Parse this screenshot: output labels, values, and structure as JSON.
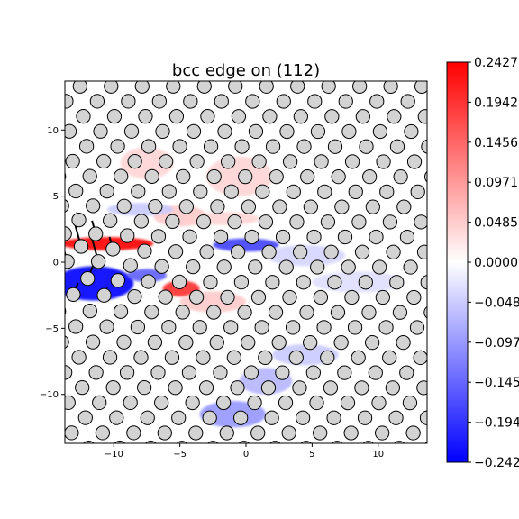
{
  "chart_data": {
    "type": "heatmap",
    "title": "bcc edge on (112)",
    "xlabel": "",
    "ylabel": "",
    "xlim": [
      -13.7,
      13.7
    ],
    "ylim": [
      -13.7,
      13.7
    ],
    "x_ticks": [
      -10,
      -5,
      0,
      5,
      10
    ],
    "x_tick_labels": [
      "−10",
      "−5",
      "0",
      "5",
      "10"
    ],
    "y_ticks": [
      10,
      5,
      0,
      -5,
      -10
    ],
    "y_tick_labels": [
      "10",
      "5",
      "0",
      "−5",
      "−10"
    ],
    "colormap": "bwr",
    "colorbar": {
      "vmin": -0.2427,
      "vmax": 0.2427,
      "ticks": [
        0.2427,
        0.1942,
        0.1456,
        0.0971,
        0.0485,
        0.0,
        -0.0485,
        -0.0971,
        -0.1456,
        -0.1942,
        -0.2427
      ],
      "tick_labels": [
        "0.2427",
        "0.1942",
        "0.1456",
        "0.0971",
        "0.0485",
        "0.0000",
        "−0.0485",
        "−0.0971",
        "−0.1456",
        "−0.1942",
        "−0.2427"
      ]
    },
    "field_regions": [
      {
        "x": -10.5,
        "y": 1.4,
        "sx": 3.5,
        "sy": 0.5,
        "value": 0.24
      },
      {
        "x": -11.5,
        "y": -1.6,
        "sx": 3.0,
        "sy": 1.3,
        "value": -0.24
      },
      {
        "x": -4.9,
        "y": -2.0,
        "sx": 1.4,
        "sy": 0.6,
        "value": 0.2
      },
      {
        "x": -7.5,
        "y": -1.0,
        "sx": 1.5,
        "sy": 0.5,
        "value": -0.15
      },
      {
        "x": 0.0,
        "y": 1.3,
        "sx": 2.5,
        "sy": 0.5,
        "value": -0.18
      },
      {
        "x": -7.5,
        "y": 7.5,
        "sx": 2.0,
        "sy": 1.2,
        "value": 0.04
      },
      {
        "x": -0.5,
        "y": 6.5,
        "sx": 2.5,
        "sy": 1.5,
        "value": 0.04
      },
      {
        "x": -5.0,
        "y": 3.5,
        "sx": 2.0,
        "sy": 0.8,
        "value": 0.05
      },
      {
        "x": -1.5,
        "y": 3.3,
        "sx": 2.5,
        "sy": 0.5,
        "value": 0.04
      },
      {
        "x": -8.0,
        "y": 4.0,
        "sx": 2.5,
        "sy": 0.5,
        "value": -0.05
      },
      {
        "x": -2.5,
        "y": -3.0,
        "sx": 2.5,
        "sy": 0.8,
        "value": 0.05
      },
      {
        "x": -1.0,
        "y": -11.5,
        "sx": 2.5,
        "sy": 1.0,
        "value": -0.1
      },
      {
        "x": 1.5,
        "y": -9.0,
        "sx": 2.0,
        "sy": 1.0,
        "value": -0.07
      },
      {
        "x": 4.5,
        "y": -7.0,
        "sx": 2.5,
        "sy": 0.8,
        "value": -0.05
      },
      {
        "x": 4.5,
        "y": 0.5,
        "sx": 3.0,
        "sy": 0.8,
        "value": -0.04
      },
      {
        "x": 8.5,
        "y": -1.5,
        "sx": 3.5,
        "sy": 0.8,
        "value": -0.03
      }
    ],
    "lattice": {
      "row_spacing_y": 1.14,
      "row_shift_x": -1.05,
      "col_spacing_x": 2.35,
      "dislocation_core": [
        -12.5,
        -0.5
      ]
    }
  }
}
